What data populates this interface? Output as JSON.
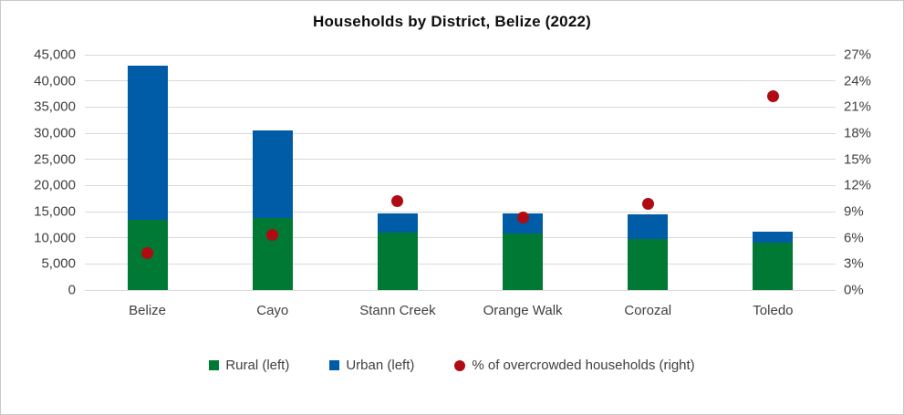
{
  "chart_data": {
    "type": "bar",
    "subtype": "stacked-column-with-scatter-overlay",
    "title": "Households by District, Belize (2022)",
    "categories": [
      "Belize",
      "Cayo",
      "Stann Creek",
      "Orange Walk",
      "Corozal",
      "Toledo"
    ],
    "series": [
      {
        "name": "Rural (left)",
        "type": "bar",
        "axis": "left",
        "color": "#007934",
        "values": [
          13400,
          13700,
          11000,
          10900,
          9700,
          9000
        ]
      },
      {
        "name": "Urban (left)",
        "type": "bar",
        "axis": "left",
        "color": "#005ca6",
        "values": [
          29500,
          16900,
          3600,
          3700,
          4700,
          2200
        ]
      },
      {
        "name": "% of overcrowded households (right)",
        "type": "scatter",
        "axis": "right",
        "color": "#b00b12",
        "values": [
          4.2,
          6.3,
          10.2,
          8.3,
          9.9,
          22.2
        ]
      }
    ],
    "left_axis": {
      "min": 0,
      "max": 45000,
      "step": 5000,
      "tick_labels": [
        "0",
        "5,000",
        "10,000",
        "15,000",
        "20,000",
        "25,000",
        "30,000",
        "35,000",
        "40,000",
        "45,000"
      ]
    },
    "right_axis": {
      "min": 0,
      "max": 27,
      "step": 3,
      "tick_labels": [
        "0%",
        "3%",
        "6%",
        "9%",
        "12%",
        "15%",
        "18%",
        "21%",
        "24%",
        "27%"
      ]
    },
    "grid": true,
    "legend_position": "bottom"
  }
}
